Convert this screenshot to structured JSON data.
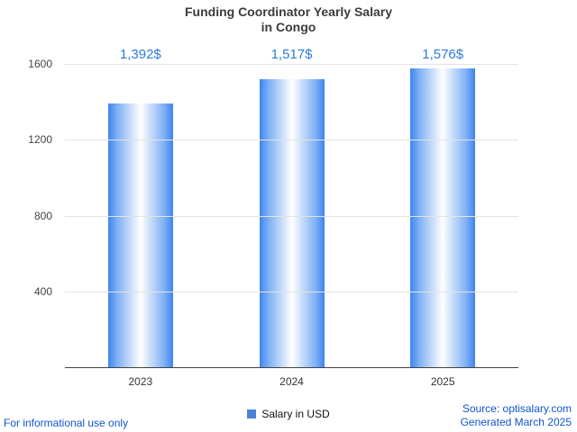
{
  "title": {
    "line1": "Funding Coordinator Yearly Salary",
    "line2": "in Congo"
  },
  "chart_data": {
    "type": "bar",
    "title": "Funding Coordinator Yearly Salary in Congo",
    "categories": [
      "2023",
      "2024",
      "2025"
    ],
    "values": [
      1392,
      1517,
      1576
    ],
    "value_labels": [
      "1,392$",
      "1,517$",
      "1,576$"
    ],
    "xlabel": "",
    "ylabel": "",
    "ylim": [
      0,
      1600
    ],
    "yticks": [
      400,
      800,
      1200,
      1600
    ],
    "grid": true,
    "legend": {
      "label": "Salary in USD",
      "position": "bottom"
    },
    "colors": {
      "bar_edge": "#3d86f0",
      "bar_center": "#ffffff",
      "value_label_blue": "#2b7cdb",
      "gridline": "#e3e3e3",
      "axis_line": "#424242",
      "legend_swatch": "#4d82d6",
      "link_blue": "#1155cc"
    }
  },
  "footer": {
    "left": "For informational use only",
    "source": "Source: optisalary.com",
    "generated": "Generated March 2025"
  }
}
